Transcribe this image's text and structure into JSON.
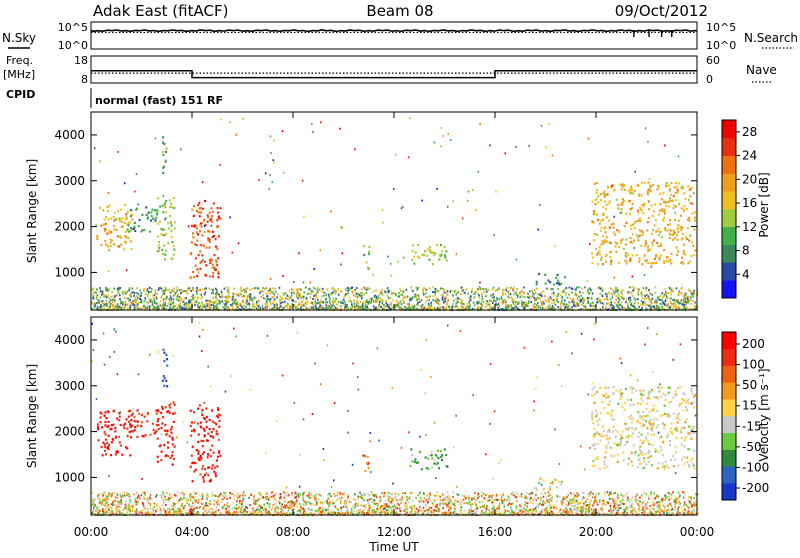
{
  "header": {
    "station": "Adak East (fitACF)",
    "beam": "Beam 08",
    "date": "09/Oct/2012"
  },
  "sky_panel": {
    "left_label": "N.Sky",
    "right_label": "N.Search",
    "ticks_left": [
      "10^5",
      "10^0"
    ],
    "ticks_right": [
      "10^5",
      "10^0"
    ]
  },
  "freq_panel": {
    "left_label": "Freq.",
    "left_unit": "[MHz]",
    "right_label": "Nave",
    "ticks_left": [
      "18",
      "8"
    ],
    "ticks_right": [
      "60",
      "0"
    ],
    "cpid_label": "CPID",
    "cpid_text": "normal (fast) 151 RF"
  },
  "colors": {
    "power": [
      "#1414f0",
      "#2a4aa8",
      "#3a8a5a",
      "#42b048",
      "#a0cc40",
      "#f0c020",
      "#f0a018",
      "#ee7010",
      "#e83010",
      "#f00000"
    ],
    "velocity": [
      "#1a36c8",
      "#2a64c0",
      "#2e8a3c",
      "#6acc3c",
      "#c8c8c8",
      "#ffd24a",
      "#f49a1a",
      "#ec6410",
      "#ef2a10",
      "#ff0000"
    ]
  },
  "chart_data": [
    {
      "type": "line",
      "title": "N.Sky / N.Search",
      "x_range": [
        "00:00",
        "24:00"
      ],
      "yscale": "log",
      "ylim": [
        1,
        100000
      ],
      "series": [
        {
          "name": "N.Sky",
          "style": "solid",
          "level": 2500
        },
        {
          "name": "N.Search",
          "style": "dotted",
          "level": 1200
        }
      ]
    },
    {
      "type": "line",
      "title": "Freq. / Nave",
      "x_range": [
        "00:00",
        "24:00"
      ],
      "ylim": [
        8,
        18
      ],
      "series": [
        {
          "name": "Freq.",
          "style": "solid",
          "x": [
            "00:00",
            "04:00",
            "04:00",
            "16:00",
            "16:00",
            "24:00"
          ],
          "y": [
            12.5,
            12.5,
            10,
            10,
            12.5,
            12.5
          ]
        },
        {
          "name": "Nave",
          "style": "dotted",
          "level": 22
        }
      ]
    },
    {
      "type": "heatmap",
      "title": "Power",
      "xlabel": "",
      "ylabel": "Slant Range [km]",
      "xlim": [
        "00:00",
        "24:00"
      ],
      "ylim": [
        180,
        4500
      ],
      "x_ticks": [
        "00:00",
        "04:00",
        "08:00",
        "12:00",
        "16:00",
        "20:00",
        "00:00"
      ],
      "y_ticks": [
        "1000",
        "2000",
        "3000",
        "4000"
      ],
      "colorbar": {
        "label": "Power [dB]",
        "ticks": [
          "4",
          "8",
          "12",
          "16",
          "20",
          "24",
          "28"
        ],
        "range": [
          0,
          30
        ]
      },
      "regions": [
        {
          "name": "A",
          "t": [
            0.2,
            1.6
          ],
          "r": [
            1500,
            2500
          ],
          "value": 18
        },
        {
          "name": "B",
          "t": [
            1.4,
            2.6
          ],
          "r": [
            1900,
            2500
          ],
          "value": 8
        },
        {
          "name": "C",
          "t": [
            2.6,
            3.3
          ],
          "r": [
            1300,
            2700
          ],
          "value": 14
        },
        {
          "name": "D",
          "t": [
            3.9,
            5.1
          ],
          "r": [
            900,
            2600
          ],
          "value": 24
        },
        {
          "name": "E",
          "t": [
            2.8,
            3.0
          ],
          "r": [
            3000,
            4100
          ],
          "value": 10
        },
        {
          "name": "F",
          "t": [
            10.7,
            11.0
          ],
          "r": [
            1100,
            1600
          ],
          "value": 12
        },
        {
          "name": "G",
          "t": [
            12.6,
            14.1
          ],
          "r": [
            1200,
            1650
          ],
          "value": 14
        },
        {
          "name": "H",
          "t": [
            19.8,
            23.9
          ],
          "r": [
            1200,
            3000
          ],
          "value": 18
        },
        {
          "name": "I",
          "t": [
            17.5,
            18.8
          ],
          "r": [
            750,
            1000
          ],
          "value": 6
        }
      ],
      "ground_band": {
        "r": [
          200,
          700
        ],
        "value": 12
      }
    },
    {
      "type": "heatmap",
      "title": "Velocity",
      "xlabel": "Time UT",
      "ylabel": "Slant Range [km]",
      "xlim": [
        "00:00",
        "24:00"
      ],
      "ylim": [
        180,
        4500
      ],
      "x_ticks": [
        "00:00",
        "04:00",
        "08:00",
        "12:00",
        "16:00",
        "20:00",
        "00:00"
      ],
      "y_ticks": [
        "1000",
        "2000",
        "3000",
        "4000"
      ],
      "colorbar": {
        "label": "Velocity [m s⁻¹]",
        "ticks": [
          "200",
          "100",
          "50",
          "15",
          "-15",
          "-50",
          "-100",
          "-200"
        ],
        "range": [
          -250,
          250
        ]
      },
      "regions": [
        {
          "name": "A",
          "t": [
            0.2,
            1.6
          ],
          "r": [
            1500,
            2500
          ],
          "value": 220
        },
        {
          "name": "B",
          "t": [
            1.4,
            2.6
          ],
          "r": [
            1900,
            2500
          ],
          "value": 180
        },
        {
          "name": "C",
          "t": [
            2.6,
            3.3
          ],
          "r": [
            1300,
            2700
          ],
          "value": 200
        },
        {
          "name": "D",
          "t": [
            3.9,
            5.1
          ],
          "r": [
            900,
            2600
          ],
          "value": 210
        },
        {
          "name": "E",
          "t": [
            2.8,
            3.0
          ],
          "r": [
            3000,
            4100
          ],
          "value": -220
        },
        {
          "name": "F",
          "t": [
            10.7,
            11.0
          ],
          "r": [
            1100,
            1600
          ],
          "value": 120
        },
        {
          "name": "G",
          "t": [
            12.6,
            14.1
          ],
          "r": [
            1200,
            1650
          ],
          "value": -90
        },
        {
          "name": "H",
          "t": [
            19.8,
            23.9
          ],
          "r": [
            1200,
            3000
          ],
          "value": 0
        },
        {
          "name": "I",
          "t": [
            17.5,
            18.8
          ],
          "r": [
            750,
            1000
          ],
          "value": 5
        }
      ],
      "ground_band": {
        "r": [
          200,
          700
        ],
        "value": 30
      }
    }
  ]
}
